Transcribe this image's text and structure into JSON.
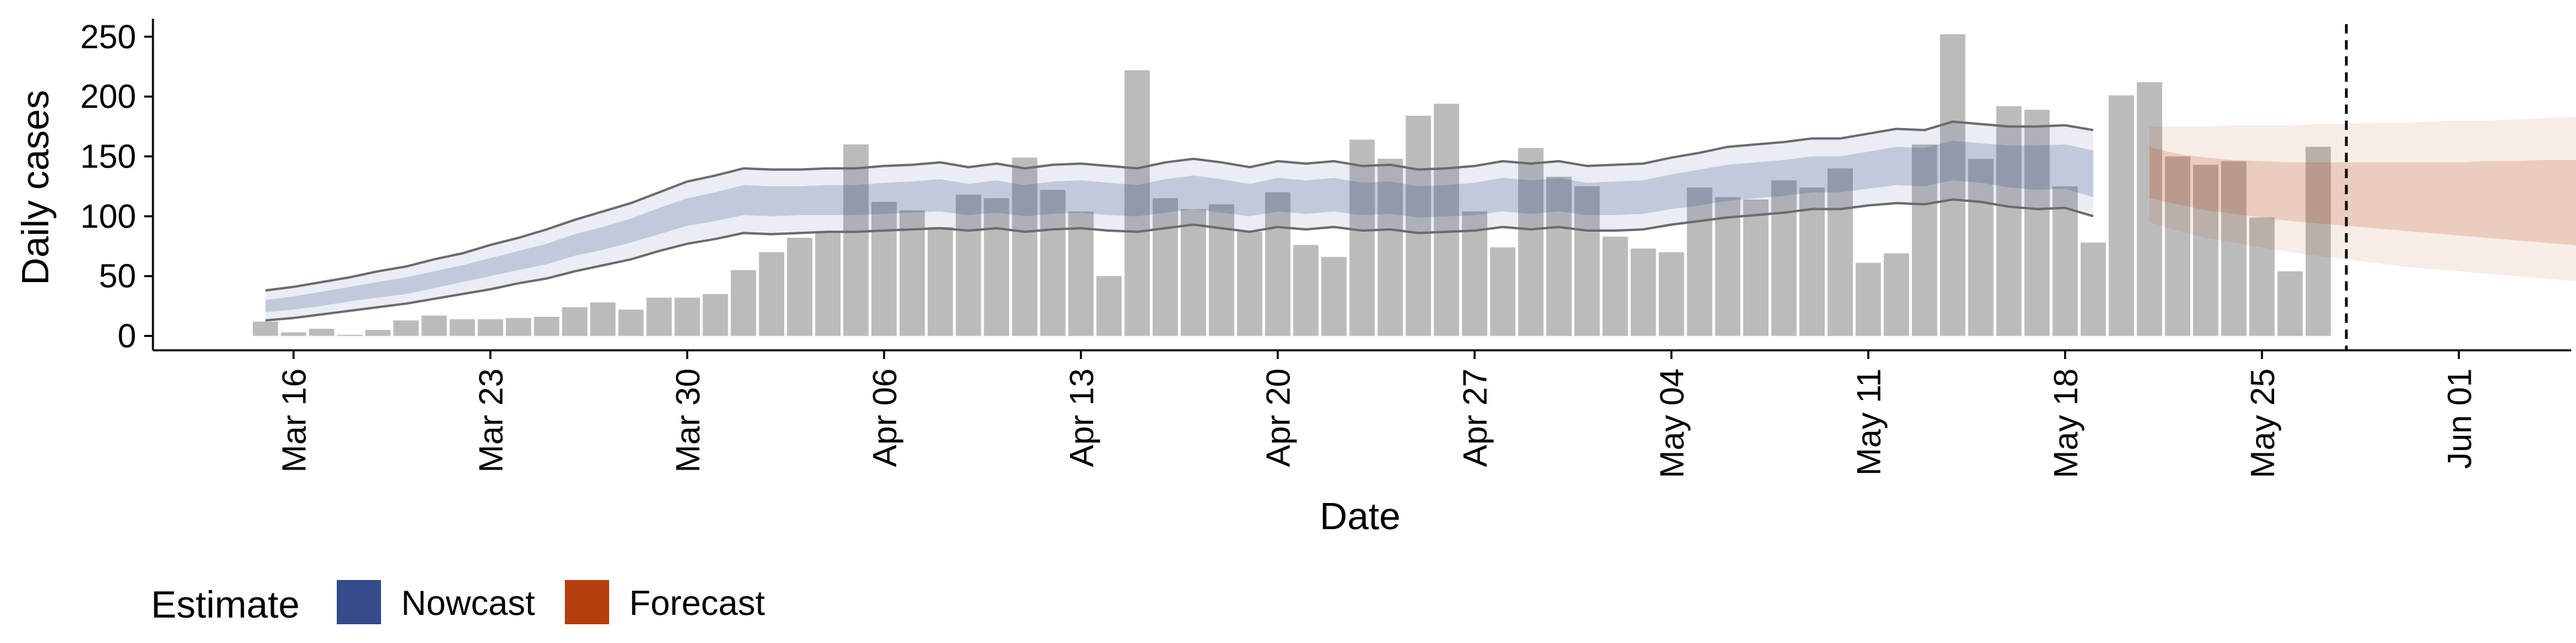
{
  "chart_data": {
    "type": "bar",
    "title": "",
    "xlabel": "Date",
    "ylabel": "Daily cases",
    "xlim": [
      "2020-03-11",
      "2020-06-05"
    ],
    "ylim": [
      -12,
      265
    ],
    "yticks": [
      0,
      50,
      100,
      150,
      200,
      250
    ],
    "xticks": [
      {
        "date": "2020-03-16",
        "label": "Mar 16"
      },
      {
        "date": "2020-03-23",
        "label": "Mar 23"
      },
      {
        "date": "2020-03-30",
        "label": "Mar 30"
      },
      {
        "date": "2020-04-06",
        "label": "Apr 06"
      },
      {
        "date": "2020-04-13",
        "label": "Apr 13"
      },
      {
        "date": "2020-04-20",
        "label": "Apr 20"
      },
      {
        "date": "2020-04-27",
        "label": "Apr 27"
      },
      {
        "date": "2020-05-04",
        "label": "May 04"
      },
      {
        "date": "2020-05-11",
        "label": "May 11"
      },
      {
        "date": "2020-05-18",
        "label": "May 18"
      },
      {
        "date": "2020-05-25",
        "label": "May 25"
      },
      {
        "date": "2020-06-01",
        "label": "Jun 01"
      }
    ],
    "grid": false,
    "legend_position": "bottom-left",
    "legend": {
      "title": "Estimate",
      "entries": [
        {
          "label": "Nowcast",
          "color": "#344b8c"
        },
        {
          "label": "Forecast",
          "color": "#b5400d"
        }
      ]
    },
    "bar_color": "#bbbbbb",
    "cases": {
      "start": "2020-03-15",
      "values": [
        12,
        3,
        6,
        1,
        5,
        13,
        17,
        14,
        14,
        15,
        16,
        24,
        28,
        22,
        32,
        32,
        35,
        55,
        70,
        82,
        86,
        160,
        112,
        105,
        91,
        118,
        115,
        149,
        122,
        104,
        50,
        222,
        115,
        106,
        110,
        87,
        120,
        76,
        66,
        164,
        148,
        184,
        194,
        104,
        74,
        157,
        133,
        125,
        83,
        73,
        70,
        124,
        116,
        114,
        130,
        124,
        140,
        61,
        69,
        160,
        252,
        148,
        192,
        189,
        125,
        78,
        201,
        212,
        150,
        143,
        146,
        99,
        54,
        158
      ]
    },
    "nowcast": {
      "start": "2020-03-15",
      "median": [
        25,
        28,
        31,
        35,
        38,
        42,
        47,
        52,
        57,
        63,
        69,
        76,
        82,
        88,
        96,
        104,
        108,
        114,
        112,
        113,
        114,
        113,
        115,
        116,
        118,
        114,
        117,
        113,
        116,
        117,
        115,
        113,
        117,
        120,
        117,
        114,
        118,
        116,
        118,
        115,
        116,
        112,
        113,
        115,
        118,
        116,
        118,
        115,
        115,
        116,
        121,
        124,
        128,
        130,
        132,
        135,
        135,
        139,
        142,
        141,
        147,
        145,
        142,
        141,
        142,
        136
      ],
      "inner": [
        [
          20,
          30
        ],
        [
          22,
          33
        ],
        [
          25,
          37
        ],
        [
          29,
          41
        ],
        [
          32,
          45
        ],
        [
          35,
          49
        ],
        [
          40,
          54
        ],
        [
          45,
          59
        ],
        [
          50,
          65
        ],
        [
          55,
          71
        ],
        [
          60,
          77
        ],
        [
          67,
          85
        ],
        [
          72,
          91
        ],
        [
          78,
          98
        ],
        [
          85,
          107
        ],
        [
          92,
          115
        ],
        [
          96,
          120
        ],
        [
          101,
          126
        ],
        [
          100,
          125
        ],
        [
          101,
          125
        ],
        [
          101,
          126
        ],
        [
          101,
          126
        ],
        [
          102,
          128
        ],
        [
          103,
          129
        ],
        [
          104,
          131
        ],
        [
          101,
          127
        ],
        [
          103,
          130
        ],
        [
          100,
          126
        ],
        [
          102,
          129
        ],
        [
          103,
          130
        ],
        [
          101,
          128
        ],
        [
          100,
          126
        ],
        [
          103,
          131
        ],
        [
          106,
          134
        ],
        [
          103,
          131
        ],
        [
          100,
          127
        ],
        [
          104,
          132
        ],
        [
          102,
          130
        ],
        [
          104,
          132
        ],
        [
          101,
          128
        ],
        [
          102,
          129
        ],
        [
          99,
          125
        ],
        [
          100,
          126
        ],
        [
          101,
          128
        ],
        [
          104,
          132
        ],
        [
          102,
          130
        ],
        [
          104,
          132
        ],
        [
          101,
          128
        ],
        [
          101,
          129
        ],
        [
          102,
          130
        ],
        [
          106,
          135
        ],
        [
          109,
          139
        ],
        [
          113,
          143
        ],
        [
          115,
          145
        ],
        [
          117,
          147
        ],
        [
          120,
          150
        ],
        [
          120,
          150
        ],
        [
          123,
          154
        ],
        [
          126,
          158
        ],
        [
          125,
          157
        ],
        [
          130,
          163
        ],
        [
          128,
          161
        ],
        [
          124,
          159
        ],
        [
          122,
          159
        ],
        [
          123,
          160
        ],
        [
          116,
          155
        ]
      ],
      "outer": [
        [
          13,
          38
        ],
        [
          15,
          41
        ],
        [
          18,
          45
        ],
        [
          21,
          49
        ],
        [
          24,
          54
        ],
        [
          27,
          58
        ],
        [
          31,
          64
        ],
        [
          35,
          69
        ],
        [
          39,
          76
        ],
        [
          44,
          82
        ],
        [
          48,
          89
        ],
        [
          54,
          97
        ],
        [
          59,
          104
        ],
        [
          64,
          111
        ],
        [
          71,
          120
        ],
        [
          77,
          129
        ],
        [
          81,
          134
        ],
        [
          86,
          140
        ],
        [
          85,
          139
        ],
        [
          86,
          139
        ],
        [
          87,
          140
        ],
        [
          87,
          140
        ],
        [
          88,
          142
        ],
        [
          89,
          143
        ],
        [
          90,
          145
        ],
        [
          88,
          141
        ],
        [
          90,
          144
        ],
        [
          87,
          140
        ],
        [
          89,
          143
        ],
        [
          90,
          144
        ],
        [
          88,
          142
        ],
        [
          87,
          140
        ],
        [
          90,
          145
        ],
        [
          93,
          148
        ],
        [
          90,
          145
        ],
        [
          87,
          141
        ],
        [
          91,
          146
        ],
        [
          89,
          144
        ],
        [
          91,
          146
        ],
        [
          88,
          142
        ],
        [
          89,
          143
        ],
        [
          86,
          139
        ],
        [
          87,
          140
        ],
        [
          88,
          142
        ],
        [
          91,
          146
        ],
        [
          89,
          144
        ],
        [
          91,
          146
        ],
        [
          88,
          142
        ],
        [
          88,
          143
        ],
        [
          89,
          144
        ],
        [
          93,
          149
        ],
        [
          96,
          153
        ],
        [
          99,
          158
        ],
        [
          101,
          160
        ],
        [
          103,
          162
        ],
        [
          106,
          165
        ],
        [
          106,
          165
        ],
        [
          109,
          169
        ],
        [
          111,
          173
        ],
        [
          110,
          172
        ],
        [
          114,
          179
        ],
        [
          112,
          177
        ],
        [
          108,
          175
        ],
        [
          106,
          175
        ],
        [
          107,
          176
        ],
        [
          100,
          172
        ]
      ]
    },
    "forecast": {
      "start": "2020-05-21",
      "median": [
        140,
        133,
        129,
        126,
        124,
        122,
        121,
        120,
        119,
        118,
        117,
        117,
        116,
        115,
        115,
        114,
        114,
        113
      ],
      "inner": [
        [
          115,
          158
        ],
        [
          110,
          152
        ],
        [
          105,
          149
        ],
        [
          102,
          147
        ],
        [
          99,
          146
        ],
        [
          96,
          145
        ],
        [
          94,
          145
        ],
        [
          92,
          145
        ],
        [
          90,
          145
        ],
        [
          88,
          145
        ],
        [
          86,
          145
        ],
        [
          84,
          145
        ],
        [
          82,
          146
        ],
        [
          80,
          146
        ],
        [
          78,
          147
        ],
        [
          76,
          147
        ],
        [
          74,
          148
        ],
        [
          72,
          148
        ]
      ],
      "outer": [
        [
          95,
          175
        ],
        [
          88,
          175
        ],
        [
          82,
          175
        ],
        [
          78,
          176
        ],
        [
          74,
          176
        ],
        [
          70,
          176
        ],
        [
          67,
          177
        ],
        [
          64,
          177
        ],
        [
          61,
          178
        ],
        [
          58,
          178
        ],
        [
          56,
          179
        ],
        [
          54,
          180
        ],
        [
          52,
          180
        ],
        [
          50,
          181
        ],
        [
          48,
          182
        ],
        [
          46,
          183
        ],
        [
          44,
          184
        ],
        [
          43,
          184
        ]
      ]
    },
    "vline_date": "2020-05-28"
  }
}
